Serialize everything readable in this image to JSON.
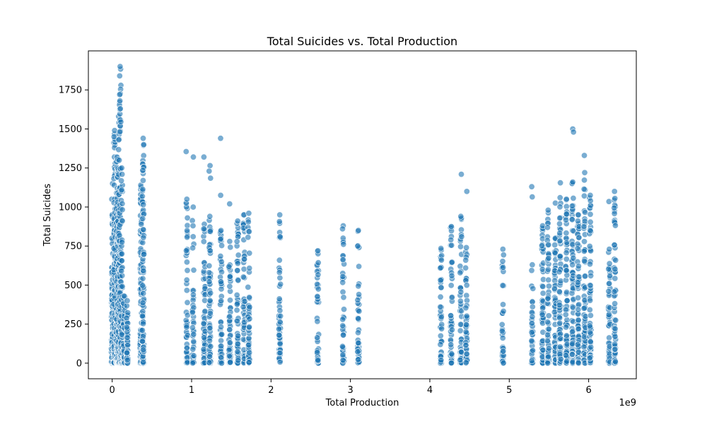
{
  "chart_data": {
    "type": "scatter",
    "title": "Total Suicides vs. Total Production",
    "xlabel": "Total Production",
    "ylabel": "Total Suicides",
    "x_offset_label": "1e9",
    "xlim": [
      -0.3,
      6.6
    ],
    "ylim": [
      -100,
      2000
    ],
    "x_ticks": [
      0,
      1,
      2,
      3,
      4,
      5,
      6
    ],
    "x_tick_labels": [
      "0",
      "1",
      "2",
      "3",
      "4",
      "5",
      "6"
    ],
    "y_ticks": [
      0,
      250,
      500,
      750,
      1000,
      1250,
      1500,
      1750
    ],
    "y_tick_labels": [
      "0",
      "250",
      "500",
      "750",
      "1000",
      "1250",
      "1500",
      "1750"
    ],
    "grid": false,
    "point_color": "#1f77b4",
    "point_alpha": 0.6,
    "columns": [
      {
        "x": 0.0,
        "n": 90,
        "max": 950,
        "peaks": [
          1050,
          1150
        ]
      },
      {
        "x": 0.03,
        "n": 120,
        "max": 1490,
        "peaks": [
          1320,
          1380,
          1450
        ]
      },
      {
        "x": 0.06,
        "n": 110,
        "max": 1320,
        "peaks": [
          1240,
          1290
        ]
      },
      {
        "x": 0.08,
        "n": 110,
        "max": 1580,
        "peaks": [
          1540,
          1430,
          1300
        ]
      },
      {
        "x": 0.1,
        "n": 100,
        "max": 1900,
        "peaks": [
          1840,
          1720,
          1680,
          1630,
          1545
        ]
      },
      {
        "x": 0.12,
        "n": 70,
        "max": 1250,
        "peaks": [
          1210,
          1110
        ]
      },
      {
        "x": 0.15,
        "n": 55,
        "max": 430,
        "peaks": []
      },
      {
        "x": 0.19,
        "n": 55,
        "max": 400,
        "peaks": []
      },
      {
        "x": 0.36,
        "n": 90,
        "max": 1140,
        "peaks": [
          1080,
          1050
        ]
      },
      {
        "x": 0.39,
        "n": 100,
        "max": 1440,
        "peaks": [
          1400,
          1235,
          1170
        ]
      },
      {
        "x": 0.94,
        "n": 60,
        "max": 1050,
        "peaks": [
          1355,
          930,
          720
        ]
      },
      {
        "x": 1.02,
        "n": 40,
        "max": 1000,
        "peaks": [
          1320,
          880,
          810
        ]
      },
      {
        "x": 1.16,
        "n": 70,
        "max": 890,
        "peaks": [
          1320,
          860
        ]
      },
      {
        "x": 1.23,
        "n": 70,
        "max": 940,
        "peaks": [
          1265,
          1230,
          1185
        ]
      },
      {
        "x": 1.37,
        "n": 60,
        "max": 850,
        "peaks": [
          1440,
          1075
        ]
      },
      {
        "x": 1.48,
        "n": 60,
        "max": 780,
        "peaks": [
          1020
        ]
      },
      {
        "x": 1.58,
        "n": 60,
        "max": 910,
        "peaks": []
      },
      {
        "x": 1.66,
        "n": 60,
        "max": 950,
        "peaks": []
      },
      {
        "x": 1.72,
        "n": 60,
        "max": 960,
        "peaks": []
      },
      {
        "x": 2.11,
        "n": 50,
        "max": 950,
        "peaks": [
          810
        ]
      },
      {
        "x": 2.59,
        "n": 45,
        "max": 720,
        "peaks": []
      },
      {
        "x": 2.91,
        "n": 45,
        "max": 880,
        "peaks": [
          860
        ]
      },
      {
        "x": 3.1,
        "n": 45,
        "max": 850,
        "peaks": [
          750
        ]
      },
      {
        "x": 4.14,
        "n": 50,
        "max": 735,
        "peaks": [
          660
        ]
      },
      {
        "x": 4.27,
        "n": 50,
        "max": 875,
        "peaks": [
          790
        ]
      },
      {
        "x": 4.39,
        "n": 50,
        "max": 940,
        "peaks": [
          1210,
          810
        ]
      },
      {
        "x": 4.46,
        "n": 50,
        "max": 740,
        "peaks": [
          1100
        ]
      },
      {
        "x": 4.92,
        "n": 45,
        "max": 730,
        "peaks": []
      },
      {
        "x": 5.29,
        "n": 45,
        "max": 630,
        "peaks": [
          1130,
          1065
        ]
      },
      {
        "x": 5.42,
        "n": 70,
        "max": 880,
        "peaks": []
      },
      {
        "x": 5.49,
        "n": 70,
        "max": 980,
        "peaks": []
      },
      {
        "x": 5.58,
        "n": 70,
        "max": 800,
        "peaks": [
          1025
        ]
      },
      {
        "x": 5.64,
        "n": 80,
        "max": 1060,
        "peaks": [
          1155
        ]
      },
      {
        "x": 5.72,
        "n": 75,
        "max": 1050,
        "peaks": [
          955
        ]
      },
      {
        "x": 5.8,
        "n": 80,
        "max": 1160,
        "peaks": [
          1500,
          1480
        ]
      },
      {
        "x": 5.87,
        "n": 75,
        "max": 950,
        "peaks": [
          910
        ]
      },
      {
        "x": 5.95,
        "n": 75,
        "max": 1220,
        "peaks": [
          1330
        ]
      },
      {
        "x": 6.02,
        "n": 75,
        "max": 1075,
        "peaks": [
          1010,
          1040
        ]
      },
      {
        "x": 6.26,
        "n": 60,
        "max": 730,
        "peaks": [
          1035
        ]
      },
      {
        "x": 6.33,
        "n": 60,
        "max": 1055,
        "peaks": [
          1100
        ]
      }
    ]
  }
}
